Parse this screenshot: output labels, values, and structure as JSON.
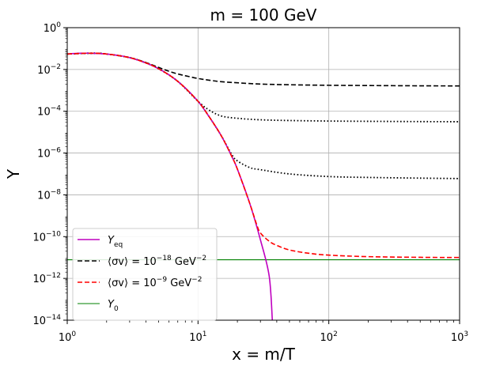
{
  "chart_data": {
    "type": "line",
    "title": "m = 100 GeV",
    "xlabel": "x = m/T",
    "ylabel": "Y",
    "xscale": "log",
    "yscale": "log",
    "xlim": [
      1,
      1000
    ],
    "ylim": [
      1e-14,
      1
    ],
    "grid": true,
    "legend_position": "lower-left",
    "x_ticks": [
      {
        "value": 1,
        "base": "10",
        "exp": "0"
      },
      {
        "value": 10,
        "base": "10",
        "exp": "1"
      },
      {
        "value": 100,
        "base": "10",
        "exp": "2"
      },
      {
        "value": 1000,
        "base": "10",
        "exp": "3"
      }
    ],
    "y_ticks": [
      {
        "value": 1e-14,
        "base": "10",
        "exp": "−14"
      },
      {
        "value": 1e-12,
        "base": "10",
        "exp": "−12"
      },
      {
        "value": 1e-10,
        "base": "10",
        "exp": "−10"
      },
      {
        "value": 1e-08,
        "base": "10",
        "exp": "−8"
      },
      {
        "value": 1e-06,
        "base": "10",
        "exp": "−6"
      },
      {
        "value": 0.0001,
        "base": "10",
        "exp": "−4"
      },
      {
        "value": 0.01,
        "base": "10",
        "exp": "−2"
      },
      {
        "value": 1,
        "base": "10",
        "exp": "0"
      }
    ],
    "series": [
      {
        "key": "yeq",
        "legend": {
          "main": "Y",
          "sub": "eq",
          "pre": "",
          "base": "",
          "exp": "",
          "post": ""
        },
        "color": "#bf00bf",
        "style": "solid",
        "width": 1.6,
        "x": [
          1,
          1.2,
          1.5,
          2,
          2.5,
          3,
          4,
          5,
          6,
          7,
          8,
          10,
          12,
          15,
          18,
          20,
          25,
          30,
          35,
          37
        ],
        "y": [
          0.055,
          0.059,
          0.06,
          0.055,
          0.046,
          0.037,
          0.0205,
          0.0108,
          0.0055,
          0.0027,
          0.0013,
          0.0003,
          6.2e-05,
          7e-06,
          7.5e-07,
          1.7e-07,
          3.5e-09,
          7e-11,
          1.3e-12,
          1e-14
        ]
      },
      {
        "key": "sv18",
        "legend": {
          "main": "",
          "sub": "",
          "pre": "⟨σv⟩ = ",
          "base": "10",
          "exp": "−18",
          "post": " GeV",
          "exp2": "−2"
        },
        "color": "#000000",
        "style": "dashed",
        "width": 1.6,
        "x": [
          1,
          1.5,
          2,
          3,
          4,
          5,
          6,
          7,
          8,
          10,
          12,
          15,
          20,
          30,
          50,
          100,
          200,
          500,
          1000
        ],
        "y": [
          0.055,
          0.06,
          0.055,
          0.037,
          0.0215,
          0.0125,
          0.0082,
          0.0061,
          0.005,
          0.0037,
          0.0031,
          0.0026,
          0.0023,
          0.002,
          0.00185,
          0.00175,
          0.0017,
          0.00165,
          0.00163
        ]
      },
      {
        "key": "dot1",
        "legend": null,
        "color": "#000000",
        "style": "dotted",
        "width": 1.8,
        "x": [
          1,
          1.5,
          2,
          3,
          4,
          5,
          7,
          10,
          12,
          15,
          20,
          30,
          50,
          100,
          200,
          500,
          1000
        ],
        "y": [
          0.055,
          0.06,
          0.055,
          0.037,
          0.0205,
          0.0108,
          0.0027,
          0.0003,
          0.00012,
          6e-05,
          4.6e-05,
          3.9e-05,
          3.6e-05,
          3.4e-05,
          3.3e-05,
          3.2e-05,
          3.15e-05
        ]
      },
      {
        "key": "dot2",
        "legend": null,
        "color": "#000000",
        "style": "dotted",
        "width": 1.8,
        "x": [
          1,
          1.5,
          2,
          3,
          4,
          5,
          7,
          10,
          12,
          15,
          18,
          20,
          25,
          30,
          50,
          100,
          200,
          500,
          1000
        ],
        "y": [
          0.055,
          0.06,
          0.055,
          0.037,
          0.0205,
          0.0108,
          0.0027,
          0.0003,
          6.2e-05,
          7e-06,
          9e-07,
          4.2e-07,
          2e-07,
          1.6e-07,
          1e-07,
          7.5e-08,
          6.8e-08,
          6.3e-08,
          6e-08
        ]
      },
      {
        "key": "sv9",
        "legend": {
          "main": "",
          "sub": "",
          "pre": "⟨σv⟩ = ",
          "base": "10",
          "exp": "−9",
          "post": " GeV",
          "exp2": "−2"
        },
        "color": "#ff0000",
        "style": "dashed",
        "width": 1.6,
        "x": [
          1,
          1.5,
          2,
          3,
          4,
          5,
          7,
          10,
          12,
          15,
          18,
          20,
          25,
          28,
          30,
          35,
          40,
          50,
          70,
          100,
          200,
          500,
          1000
        ],
        "y": [
          0.055,
          0.06,
          0.055,
          0.037,
          0.0205,
          0.0108,
          0.0027,
          0.0003,
          6.2e-05,
          7e-06,
          7.5e-07,
          1.7e-07,
          3.5e-09,
          4e-10,
          1.5e-10,
          6e-11,
          3.8e-11,
          2.3e-11,
          1.6e-11,
          1.3e-11,
          1.1e-11,
          1.02e-11,
          1e-11
        ]
      },
      {
        "key": "y0",
        "legend": {
          "main": "Y",
          "sub": "0",
          "pre": "",
          "base": "",
          "exp": "",
          "post": ""
        },
        "color": "#008000",
        "style": "solid",
        "width": 1.1,
        "x": [
          1,
          1000
        ],
        "y": [
          7.8e-12,
          7.8e-12
        ]
      }
    ]
  }
}
